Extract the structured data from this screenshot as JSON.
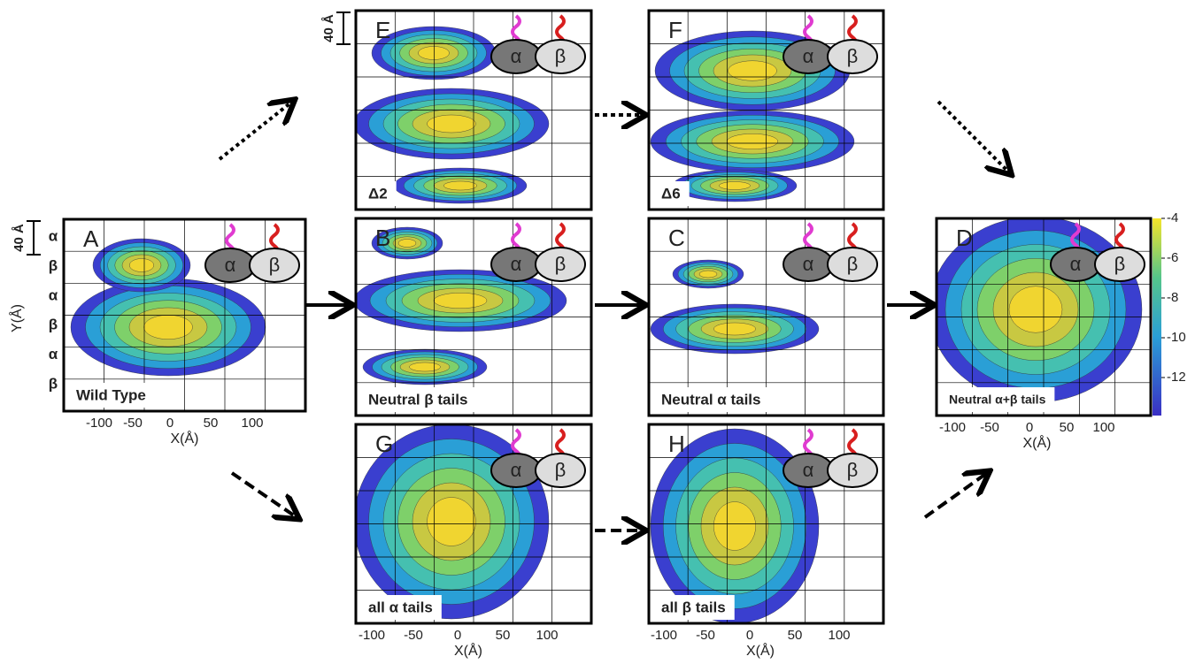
{
  "panels": [
    {
      "letter": "A",
      "label": "Wild Type"
    },
    {
      "letter": "B",
      "label": "Neutral β tails"
    },
    {
      "letter": "C",
      "label": "Neutral α tails"
    },
    {
      "letter": "D",
      "label": "Neutral α+β tails"
    },
    {
      "letter": "E",
      "label": "Δ2"
    },
    {
      "letter": "F",
      "label": "Δ6"
    },
    {
      "letter": "G",
      "label": "all α tails"
    },
    {
      "letter": "H",
      "label": "all β tails"
    }
  ],
  "subunit_labels": [
    "α",
    "β"
  ],
  "x_ticks": [
    "-100",
    "-50",
    "0",
    "50",
    "100"
  ],
  "x_axis_label": "X(Å)",
  "y_axis_label": "Y(Å)",
  "row_labels": [
    "α",
    "β",
    "α",
    "β",
    "α",
    "β"
  ],
  "scale_label": "40 Å",
  "colorbar_ticks": [
    "-4",
    "-6",
    "-8",
    "-10",
    "-12"
  ]
}
